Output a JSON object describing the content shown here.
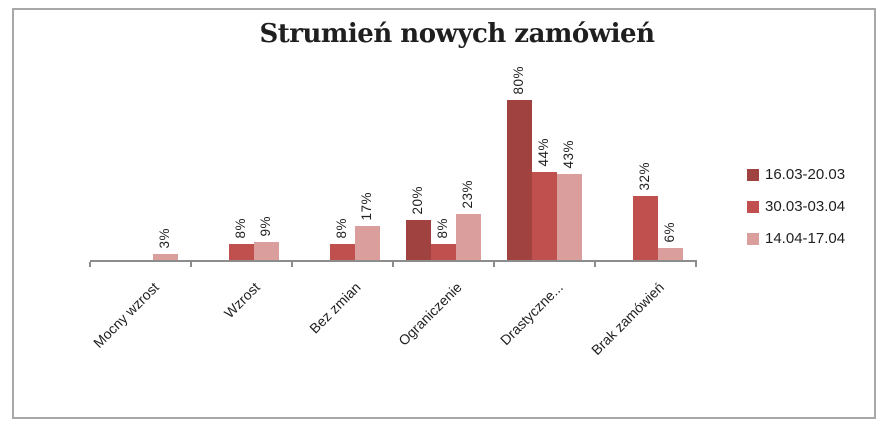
{
  "chart_data": {
    "type": "bar",
    "title": "Strumień nowych zamówień",
    "categories": [
      "Mocny wzrost",
      "Wzrost",
      "Bez zmian",
      "Ograniczenie",
      "Drastyczne...",
      "Brak zamówień"
    ],
    "series": [
      {
        "name": "16.03-20.03",
        "color": "#A04240",
        "values": [
          0,
          0,
          0,
          20,
          80,
          0
        ]
      },
      {
        "name": "30.03-03.04",
        "color": "#C0504D",
        "values": [
          0,
          8,
          8,
          8,
          44,
          32
        ]
      },
      {
        "name": "14.04-17.04",
        "color": "#DA9E9C",
        "values": [
          3,
          9,
          17,
          23,
          43,
          6
        ]
      }
    ],
    "value_suffix": "%",
    "data_labels": "outside end, rotated vertical, hidden for zero values",
    "xlabel": "",
    "ylabel": "",
    "ylim": [
      0,
      100
    ],
    "grid": false,
    "legend_position": "right",
    "x_tick_label_rotation": -45
  },
  "colors": {
    "axis": "#8C8C8C",
    "frame_border": "#A8A8A8",
    "text": "#1F1F1F",
    "background": "#FFFFFF"
  }
}
